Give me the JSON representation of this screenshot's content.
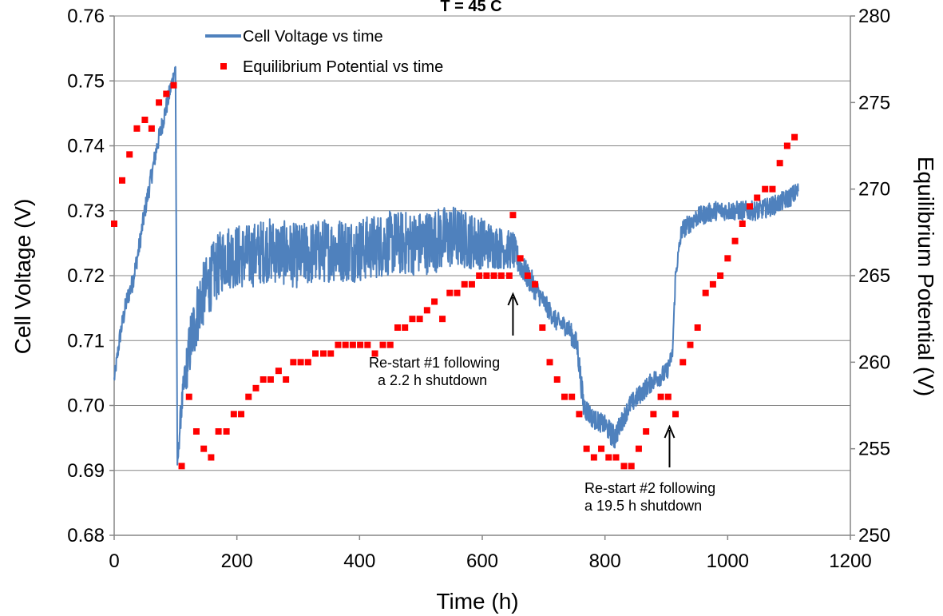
{
  "chart_data": {
    "type": "line",
    "title": "T = 45 C",
    "xlabel": "Time (h)",
    "ylabel": "Cell Voltage (V)",
    "y2label": "Equilibrium Potential (V)",
    "xlim": [
      0,
      1200
    ],
    "ylim": [
      0.68,
      0.76
    ],
    "y2lim": [
      250,
      280
    ],
    "x_ticks": [
      "0",
      "200",
      "400",
      "600",
      "800",
      "1000",
      "1200"
    ],
    "y_ticks": [
      "0.68",
      "0.69",
      "0.70",
      "0.71",
      "0.72",
      "0.73",
      "0.74",
      "0.75",
      "0.76"
    ],
    "y2_ticks": [
      "250",
      "255",
      "260",
      "265",
      "270",
      "275",
      "280"
    ],
    "grid": "horizontal",
    "legend_position": "top-left",
    "colors": {
      "voltage": "#4f81bd",
      "potential": "#ff0000"
    },
    "series": [
      {
        "name": "Cell Voltage vs time",
        "axis": "left",
        "style": "line",
        "x": [
          0,
          10,
          20,
          30,
          40,
          50,
          60,
          70,
          80,
          90,
          97,
          100,
          103,
          108,
          115,
          125,
          140,
          160,
          180,
          200,
          220,
          250,
          300,
          350,
          400,
          450,
          500,
          550,
          600,
          640,
          650,
          660,
          680,
          700,
          720,
          740,
          755,
          765,
          780,
          800,
          815,
          825,
          840,
          860,
          880,
          900,
          910,
          915,
          925,
          950,
          980,
          1000,
          1050,
          1080,
          1100,
          1115
        ],
        "y": [
          0.704,
          0.711,
          0.716,
          0.719,
          0.724,
          0.73,
          0.735,
          0.74,
          0.744,
          0.748,
          0.751,
          0.752,
          0.69,
          0.698,
          0.704,
          0.71,
          0.716,
          0.72,
          0.723,
          0.723,
          0.723,
          0.724,
          0.723,
          0.724,
          0.724,
          0.725,
          0.725,
          0.726,
          0.725,
          0.724,
          0.724,
          0.722,
          0.719,
          0.716,
          0.713,
          0.712,
          0.709,
          0.7,
          0.698,
          0.697,
          0.695,
          0.697,
          0.7,
          0.702,
          0.704,
          0.705,
          0.708,
          0.72,
          0.727,
          0.729,
          0.73,
          0.73,
          0.73,
          0.731,
          0.732,
          0.733
        ],
        "noise": [
          0.001,
          0.0015,
          0.0015,
          0.0015,
          0.0015,
          0.0015,
          0.0015,
          0.0015,
          0.0015,
          0.0015,
          0.001,
          0.001,
          0.001,
          0.002,
          0.003,
          0.005,
          0.005,
          0.005,
          0.005,
          0.005,
          0.005,
          0.005,
          0.005,
          0.005,
          0.005,
          0.005,
          0.005,
          0.005,
          0.004,
          0.003,
          0.003,
          0.002,
          0.002,
          0.0015,
          0.0015,
          0.0015,
          0.002,
          0.002,
          0.0015,
          0.0015,
          0.002,
          0.0015,
          0.0015,
          0.0015,
          0.0015,
          0.0015,
          0.001,
          0.001,
          0.0015,
          0.0015,
          0.0015,
          0.0015,
          0.0015,
          0.0015,
          0.0015,
          0.0015
        ]
      },
      {
        "name": "Equilibrium Potential vs time",
        "axis": "right",
        "style": "markers",
        "x": [
          0,
          13,
          25,
          37,
          50,
          61,
          73,
          85,
          97,
          110,
          122,
          134,
          146,
          158,
          170,
          183,
          195,
          207,
          219,
          231,
          243,
          255,
          268,
          280,
          292,
          304,
          316,
          328,
          341,
          353,
          365,
          377,
          389,
          401,
          413,
          425,
          438,
          450,
          462,
          474,
          486,
          498,
          510,
          522,
          535,
          547,
          559,
          571,
          583,
          595,
          607,
          619,
          631,
          644,
          650,
          662,
          674,
          686,
          698,
          710,
          722,
          734,
          746,
          758,
          770,
          782,
          794,
          806,
          818,
          831,
          843,
          855,
          867,
          879,
          891,
          903,
          915,
          927,
          939,
          951,
          964,
          976,
          988,
          1000,
          1012,
          1024,
          1036,
          1048,
          1061,
          1073,
          1085,
          1097,
          1109
        ],
        "y": [
          268,
          270.5,
          272,
          273.5,
          274,
          273.5,
          275,
          275.5,
          276,
          254,
          258,
          256,
          255,
          254.5,
          256,
          256,
          257,
          257,
          258,
          258.5,
          259,
          259,
          259.5,
          259,
          260,
          260,
          260,
          260.5,
          260.5,
          260.5,
          261,
          261,
          261,
          261,
          261,
          260.5,
          261,
          261,
          262,
          262,
          262.5,
          262.5,
          263,
          263.5,
          262.5,
          264,
          264,
          264.5,
          264.5,
          265,
          265,
          265,
          265,
          265,
          268.5,
          266,
          265,
          264.5,
          262,
          260,
          259,
          258,
          258,
          257,
          255,
          254.5,
          255,
          254.5,
          254.5,
          254,
          254,
          255,
          256,
          257,
          258,
          258,
          257,
          260,
          261,
          262,
          264,
          264.5,
          265,
          266,
          267,
          268,
          269,
          269.5,
          270,
          270,
          271.5,
          272.5,
          273
        ]
      }
    ],
    "annotations": [
      {
        "line1": "Re-start #1 following",
        "line2": "a 2.2 h shutdown",
        "x": 650,
        "y": 0.719
      },
      {
        "line1": "Re-start #2 following",
        "line2": "a 19.5 h shutdown",
        "x": 900,
        "y": 0.697
      }
    ]
  }
}
